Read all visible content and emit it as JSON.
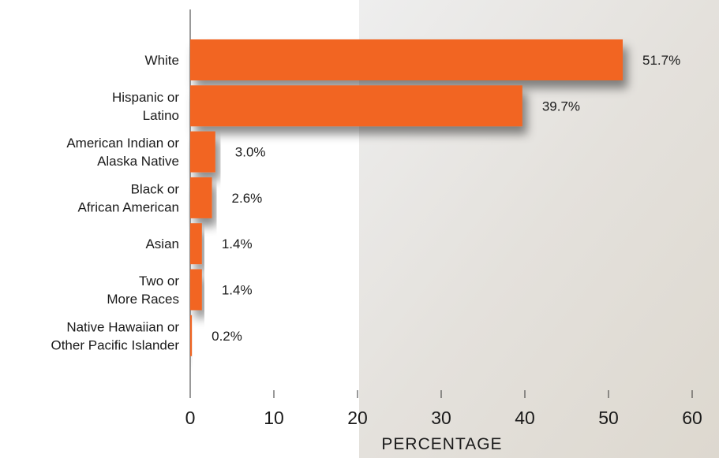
{
  "chart_data": {
    "type": "bar",
    "orientation": "horizontal",
    "categories": [
      [
        "White"
      ],
      [
        "Hispanic or",
        "Latino"
      ],
      [
        "American Indian or",
        "Alaska Native"
      ],
      [
        "Black or",
        "African American"
      ],
      [
        "Asian"
      ],
      [
        "Two or",
        "More Races"
      ],
      [
        "Native Hawaiian or",
        "Other Pacific Islander"
      ]
    ],
    "values": [
      51.7,
      39.7,
      3.0,
      2.6,
      1.4,
      1.4,
      0.2
    ],
    "value_labels": [
      "51.7%",
      "39.7%",
      "3.0%",
      "2.6%",
      "1.4%",
      "1.4%",
      "0.2%"
    ],
    "color": "#f26522",
    "xlim": [
      0,
      60
    ],
    "xticks": [
      0,
      10,
      20,
      30,
      40,
      50,
      60
    ],
    "xlabel": "PERCENTAGE"
  }
}
